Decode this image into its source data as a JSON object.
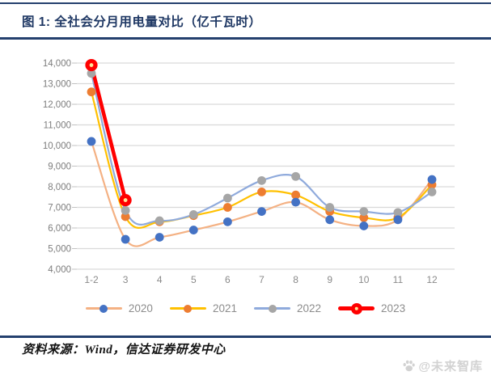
{
  "header": {
    "title": "图 1:  全社会分月用电量对比（亿千瓦时）"
  },
  "chart_data": {
    "type": "line",
    "title": "全社会分月用电量对比（亿千瓦时）",
    "categories": [
      "1-2",
      "3",
      "4",
      "5",
      "6",
      "7",
      "8",
      "9",
      "10",
      "11",
      "12"
    ],
    "series": [
      {
        "name": "2020",
        "line_color": "#F4B183",
        "marker_color": "#4472C4",
        "values": [
          10200,
          5450,
          5550,
          5900,
          6300,
          6800,
          7250,
          6400,
          6100,
          6400,
          8350
        ]
      },
      {
        "name": "2021",
        "line_color": "#FFC000",
        "marker_color": "#ED7D31",
        "values": [
          12600,
          6550,
          6300,
          6600,
          7000,
          7750,
          7600,
          6800,
          6500,
          6500,
          8100
        ]
      },
      {
        "name": "2022",
        "line_color": "#8FAADC",
        "marker_color": "#A6A6A6",
        "values": [
          13500,
          6850,
          6350,
          6650,
          7450,
          8300,
          8500,
          7000,
          6800,
          6750,
          7750
        ]
      },
      {
        "name": "2023",
        "line_color": "#FF0000",
        "marker_color": "#FF0000",
        "marker_center": "#FFE599",
        "thick": true,
        "values": [
          13900,
          7350,
          null,
          null,
          null,
          null,
          null,
          null,
          null,
          null,
          null
        ]
      }
    ],
    "xlabel": "",
    "ylabel": "",
    "ylim": [
      4000,
      14000
    ],
    "ytick_step": 1000,
    "ytick_format": "comma",
    "grid": true,
    "legend_position": "bottom"
  },
  "footer": {
    "source": "资料来源：Wind，信达证券研发中心"
  },
  "watermark": {
    "icon": "paw-icon",
    "text": "@未来智库"
  },
  "colors": {
    "accent_navy": "#1F3864",
    "grid_line": "#D9D9D9",
    "axis_text": "#7d7d7d",
    "legend_text": "#8c8c8c",
    "watermark_text": "#d2d2d2"
  }
}
